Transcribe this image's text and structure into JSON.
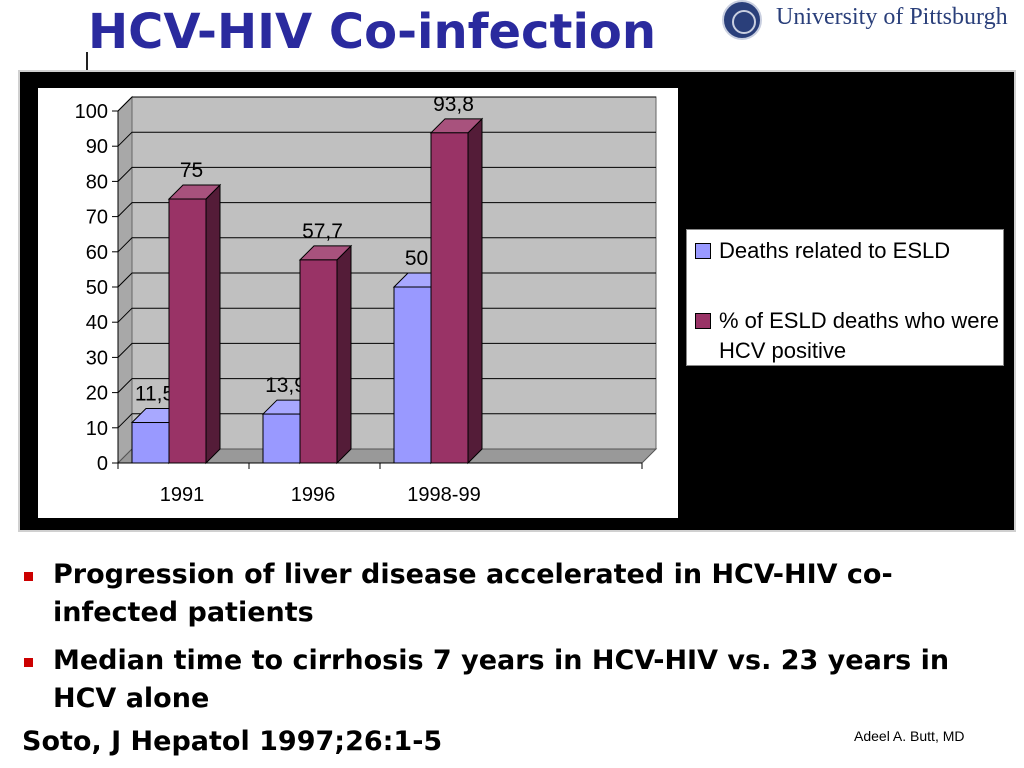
{
  "slide": {
    "title": "HCV-HIV Co-infection",
    "logo_text": "University of Pittsburgh",
    "bullets": [
      "Progression of liver disease accelerated in HCV-HIV co-infected patients",
      "Median time to cirrhosis 7 years in HCV-HIV vs. 23 years in HCV alone"
    ],
    "citation": "Soto, J Hepatol 1997;26:1-5",
    "author": "Adeel A. Butt, MD"
  },
  "chart_data": {
    "type": "bar",
    "categories": [
      "1991",
      "1996",
      "1998-99"
    ],
    "series": [
      {
        "name": "Deaths related to ESLD",
        "values": [
          11.5,
          13.9,
          50
        ],
        "labels": [
          "11,5",
          "13,9",
          "50"
        ],
        "color": "#9999ff"
      },
      {
        "name": "% of ESLD deaths who were HCV positive",
        "values": [
          75,
          57.7,
          93.8
        ],
        "labels": [
          "75",
          "57,7",
          "93,8"
        ],
        "color": "#993366"
      }
    ],
    "ylim": [
      0,
      100
    ],
    "yticks": [
      "0",
      "10",
      "20",
      "30",
      "40",
      "50",
      "60",
      "70",
      "80",
      "90",
      "100"
    ],
    "grid": true,
    "legend_position": "right",
    "style": "3d-column"
  }
}
